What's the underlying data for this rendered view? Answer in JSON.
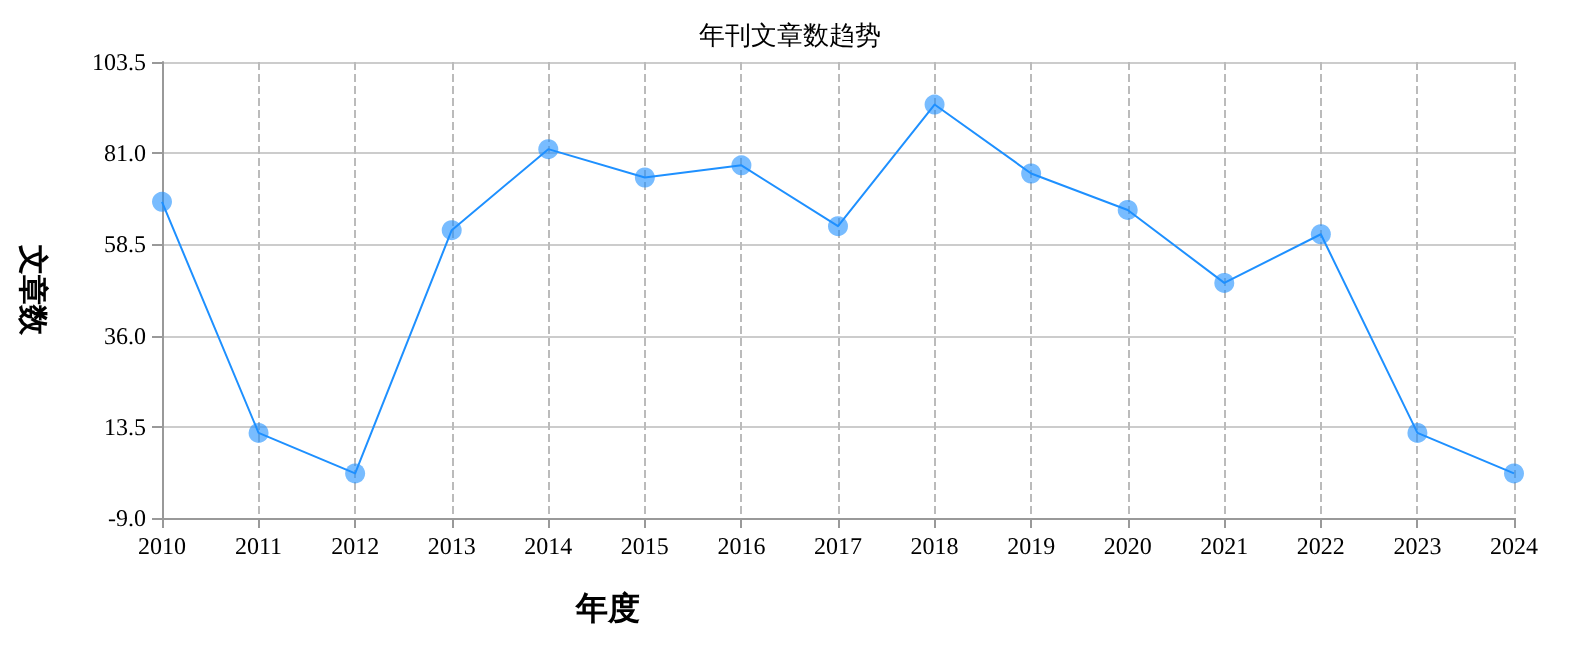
{
  "chart_data": {
    "type": "line",
    "title": "年刊文章数趋势",
    "xlabel": "年度",
    "ylabel": "文章数",
    "categories": [
      "2010",
      "2011",
      "2012",
      "2013",
      "2014",
      "2015",
      "2016",
      "2017",
      "2018",
      "2019",
      "2020",
      "2021",
      "2022",
      "2023",
      "2024"
    ],
    "series": [
      {
        "color": "#1e90ff",
        "values": [
          69,
          12,
          2,
          62,
          82,
          75,
          78,
          63,
          93,
          76,
          67,
          49,
          61,
          12,
          2
        ]
      }
    ],
    "ylim": [
      -9,
      103.5
    ],
    "yticks": [
      {
        "value": -9,
        "label": "-9.0"
      },
      13.5,
      {
        "value": 36,
        "label": "36.0"
      },
      58.5,
      {
        "value": 81,
        "label": "81.0"
      },
      103.5
    ],
    "grid": true,
    "marker": "circle",
    "line_style": "solid"
  }
}
